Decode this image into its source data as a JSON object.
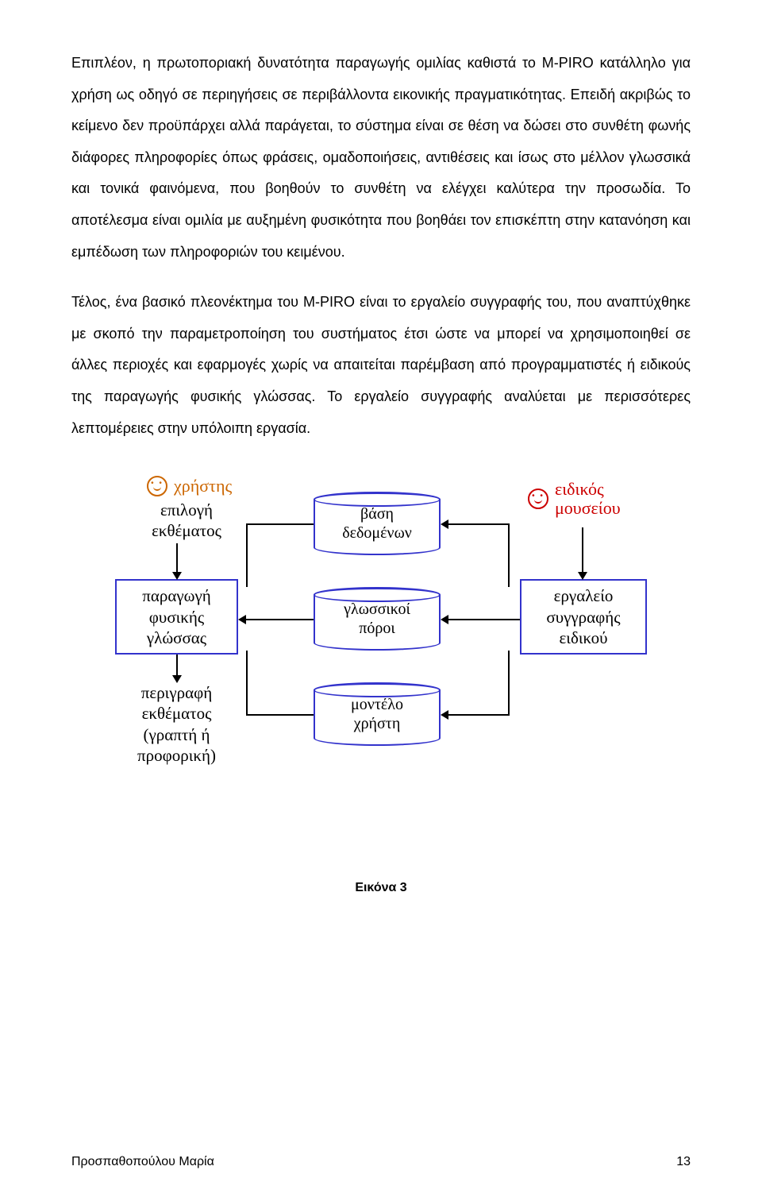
{
  "paragraphs": {
    "p1": "Επιπλέον, η πρωτοποριακή δυνατότητα παραγωγής ομιλίας καθιστά το M-PIRO κατάλληλο για χρήση ως οδηγό σε περιηγήσεις σε περιβάλλοντα εικονικής πραγματικότητας. Επειδή ακριβώς το κείμενο δεν προϋπάρχει αλλά παράγεται, το σύστημα είναι σε θέση να δώσει στο συνθέτη φωνής διάφορες πληροφορίες όπως φράσεις, ομαδοποιήσεις, αντιθέσεις και ίσως στο μέλλον γλωσσικά και τονικά φαινόμενα, που βοηθούν το συνθέτη να ελέγχει καλύτερα την προσωδία. Το αποτέλεσμα είναι ομιλία με αυξημένη φυσικότητα που βοηθάει τον επισκέπτη στην κατανόηση και εμπέδωση των πληροφοριών του κειμένου.",
    "p2": "Τέλος, ένα βασικό πλεονέκτημα του M-PIRO είναι το εργαλείο συγγραφής του, που αναπτύχθηκε με σκοπό την παραμετροποίηση του συστήματος έτσι ώστε να μπορεί να χρησιμοποιηθεί σε άλλες περιοχές και εφαρμογές χωρίς να απαιτείται παρέμβαση από προγραμματιστές ή ειδικούς της παραγωγής φυσικής γλώσσας. Το εργαλείο συγγραφής αναλύεται με περισσότερες λεπτομέρειες στην υπόλοιπη εργασία."
  },
  "diagram": {
    "colors": {
      "user_color": "#cc6600",
      "expert_color": "#cc0000",
      "box_border": "#3333cc",
      "cylinder_border": "#3333cc",
      "text_color": "#000000"
    },
    "actors": {
      "user": "χρήστης",
      "expert": "ειδικός\nμουσείου"
    },
    "labels": {
      "selection": "επιλογή\nεκθέματος",
      "description": "περιγραφή\nεκθέματος\n(γραπτή ή\nπροφορική)"
    },
    "boxes": {
      "nlg": "παραγωγή\nφυσικής\nγλώσσας",
      "authoring": "εργαλείο\nσυγγραφής\nειδικού"
    },
    "cylinders": {
      "db": "βάση\nδεδομένων",
      "resources": "γλωσσικοί\nπόροι",
      "usermodel": "μοντέλο\nχρήστη"
    }
  },
  "caption": "Εικόνα 3",
  "footer": {
    "author": "Προσπαθοπούλου Μαρία",
    "page": "13"
  }
}
